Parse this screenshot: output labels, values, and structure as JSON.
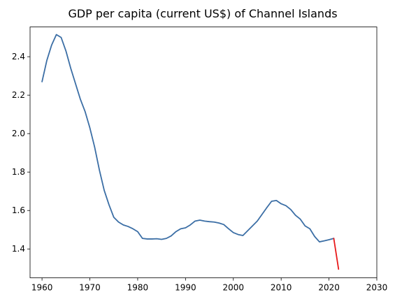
{
  "chart_data": {
    "type": "line",
    "title": "GDP per capita (current US$) of Channel Islands",
    "xlabel": "",
    "ylabel": "",
    "xlim": [
      1957.5,
      2030
    ],
    "ylim": [
      1.25,
      2.555
    ],
    "x_ticks": [
      1960,
      1970,
      1980,
      1990,
      2000,
      2010,
      2020,
      2030
    ],
    "y_ticks": [
      1.4,
      1.6,
      1.8,
      2.0,
      2.2,
      2.4
    ],
    "y_tick_labels": [
      "1.4",
      "1.6",
      "1.8",
      "2.0",
      "2.2",
      "2.4"
    ],
    "grid": false,
    "series": [
      {
        "color": "#3b6ea5",
        "x": [
          1960,
          1961,
          1962,
          1963,
          1964,
          1965,
          1966,
          1967,
          1968,
          1969,
          1970,
          1971,
          1972,
          1973,
          1974,
          1975,
          1976,
          1977,
          1978,
          1979,
          1980,
          1981,
          1982,
          1983,
          1984,
          1985,
          1986,
          1987,
          1988,
          1989,
          1990,
          1991,
          1992,
          1993,
          1994,
          1995,
          1996,
          1997,
          1998,
          1999,
          2000,
          2001,
          2002,
          2003,
          2004,
          2005,
          2006,
          2007,
          2008,
          2009,
          2010,
          2011,
          2012,
          2013,
          2014,
          2015,
          2016,
          2017,
          2018,
          2019,
          2020,
          2021
        ],
        "values": [
          2.27,
          2.38,
          2.46,
          2.515,
          2.5,
          2.43,
          2.34,
          2.26,
          2.18,
          2.115,
          2.03,
          1.93,
          1.81,
          1.705,
          1.63,
          1.565,
          1.54,
          1.525,
          1.517,
          1.505,
          1.49,
          1.455,
          1.452,
          1.452,
          1.453,
          1.45,
          1.455,
          1.468,
          1.49,
          1.505,
          1.51,
          1.525,
          1.545,
          1.55,
          1.545,
          1.542,
          1.54,
          1.535,
          1.527,
          1.505,
          1.485,
          1.475,
          1.47,
          1.495,
          1.52,
          1.545,
          1.58,
          1.615,
          1.648,
          1.652,
          1.635,
          1.625,
          1.605,
          1.575,
          1.555,
          1.52,
          1.505,
          1.465,
          1.437,
          1.442,
          1.448,
          1.455
        ]
      },
      {
        "color": "#e8191a",
        "x": [
          2021,
          2022
        ],
        "values": [
          1.455,
          1.295
        ]
      }
    ]
  }
}
